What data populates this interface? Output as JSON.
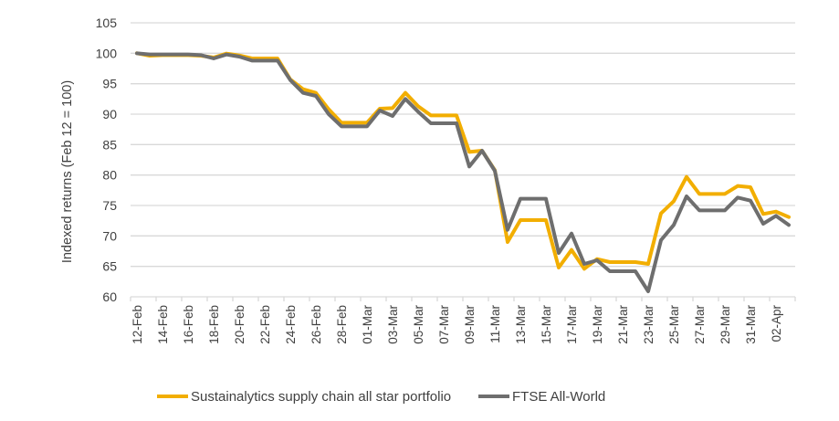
{
  "chart_data": {
    "type": "line",
    "title": "",
    "xlabel": "",
    "ylabel": "Indexed returns (Feb 12 = 100)",
    "ylim": [
      60,
      105
    ],
    "yticks": [
      60,
      65,
      70,
      75,
      80,
      85,
      90,
      95,
      100,
      105
    ],
    "grid": true,
    "legend_position": "bottom",
    "x": [
      "12-Feb",
      "13-Feb",
      "14-Feb",
      "15-Feb",
      "16-Feb",
      "17-Feb",
      "18-Feb",
      "19-Feb",
      "20-Feb",
      "21-Feb",
      "22-Feb",
      "23-Feb",
      "24-Feb",
      "25-Feb",
      "26-Feb",
      "27-Feb",
      "28-Feb",
      "29-Feb",
      "01-Mar",
      "02-Mar",
      "03-Mar",
      "04-Mar",
      "05-Mar",
      "06-Mar",
      "07-Mar",
      "08-Mar",
      "09-Mar",
      "10-Mar",
      "11-Mar",
      "12-Mar",
      "13-Mar",
      "14-Mar",
      "15-Mar",
      "16-Mar",
      "17-Mar",
      "18-Mar",
      "19-Mar",
      "20-Mar",
      "21-Mar",
      "22-Mar",
      "23-Mar",
      "24-Mar",
      "25-Mar",
      "26-Mar",
      "27-Mar",
      "28-Mar",
      "29-Mar",
      "30-Mar",
      "31-Mar",
      "01-Apr",
      "02-Apr",
      "03-Apr"
    ],
    "x_tick_labels": [
      "12-Feb",
      "14-Feb",
      "16-Feb",
      "18-Feb",
      "20-Feb",
      "22-Feb",
      "24-Feb",
      "26-Feb",
      "28-Feb",
      "01-Mar",
      "03-Mar",
      "05-Mar",
      "07-Mar",
      "09-Mar",
      "11-Mar",
      "13-Mar",
      "15-Mar",
      "17-Mar",
      "19-Mar",
      "21-Mar",
      "23-Mar",
      "25-Mar",
      "27-Mar",
      "29-Mar",
      "31-Mar",
      "02-Apr"
    ],
    "series": [
      {
        "name": "Sustainalytics supply chain all star portfolio",
        "color": "#F2AE00",
        "values": [
          100.0,
          99.6,
          99.7,
          99.7,
          99.7,
          99.6,
          99.3,
          99.95,
          99.65,
          99.15,
          99.15,
          99.15,
          95.7,
          94.1,
          93.5,
          90.8,
          88.6,
          88.6,
          88.6,
          90.9,
          91.0,
          93.5,
          91.3,
          89.8,
          89.8,
          89.8,
          83.8,
          84.0,
          80.8,
          69.0,
          72.6,
          72.6,
          72.6,
          64.8,
          67.7,
          64.6,
          66.2,
          65.7,
          65.7,
          65.7,
          65.4,
          73.7,
          75.7,
          79.7,
          76.9,
          76.9,
          76.9,
          78.2,
          78.0,
          73.6,
          74.0,
          73.1
        ]
      },
      {
        "name": "FTSE All-World",
        "color": "#6E6E6E",
        "values": [
          100.0,
          99.8,
          99.8,
          99.8,
          99.8,
          99.7,
          99.15,
          99.8,
          99.45,
          98.8,
          98.8,
          98.8,
          95.6,
          93.5,
          93.0,
          90.0,
          88.0,
          88.0,
          88.0,
          90.6,
          89.7,
          92.5,
          90.4,
          88.5,
          88.5,
          88.5,
          81.4,
          84.0,
          80.7,
          71.0,
          76.1,
          76.1,
          76.1,
          67.2,
          70.4,
          65.4,
          66.0,
          64.2,
          64.2,
          64.2,
          60.9,
          69.3,
          71.8,
          76.5,
          74.2,
          74.2,
          74.2,
          76.3,
          75.8,
          72.0,
          73.3,
          71.8
        ]
      }
    ]
  }
}
